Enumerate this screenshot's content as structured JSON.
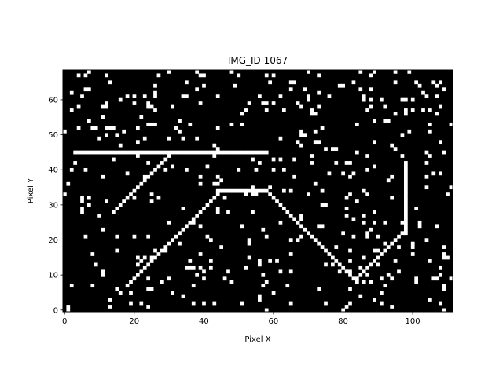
{
  "chart_data": {
    "type": "heatmap",
    "title": "IMG_ID 1067",
    "xlabel": "Pixel X",
    "ylabel": "Pixel Y",
    "xlim": [
      0,
      112
    ],
    "ylim": [
      0,
      69
    ],
    "xticks": [
      0,
      20,
      40,
      60,
      80,
      100
    ],
    "yticks": [
      0,
      10,
      20,
      30,
      40,
      50,
      60
    ],
    "colormap": {
      "off": "#000000",
      "on": "#ffffff"
    },
    "grid": false,
    "noise_seed": 1067,
    "noise_density": 0.06,
    "segments": [
      {
        "from": [
          3,
          45
        ],
        "to": [
          58,
          45
        ],
        "label": "horizontal line"
      },
      {
        "from": [
          14,
          28
        ],
        "to": [
          31,
          45
        ],
        "label": "upper diagonal"
      },
      {
        "from": [
          18,
          7
        ],
        "to": [
          44,
          33
        ],
        "label": "rising edge"
      },
      {
        "from": [
          44,
          34
        ],
        "to": [
          58,
          34
        ],
        "label": "plateau"
      },
      {
        "from": [
          59,
          33
        ],
        "to": [
          84,
          8
        ],
        "label": "falling edge"
      },
      {
        "from": [
          84,
          9
        ],
        "to": [
          98,
          23
        ],
        "label": "valley rise"
      },
      {
        "from": [
          98,
          22
        ],
        "to": [
          98,
          42
        ],
        "label": "vertical line"
      }
    ]
  }
}
